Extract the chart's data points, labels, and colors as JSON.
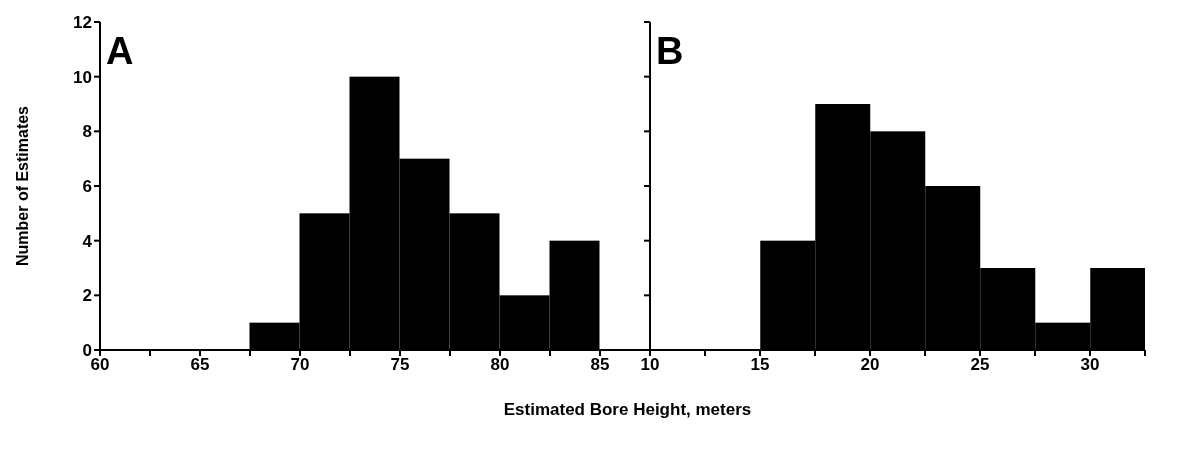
{
  "chart_data": [
    {
      "type": "histogram",
      "annotations": [
        "A"
      ],
      "xlabel": "Estimated Bore Height, meters",
      "ylabel": "Number of Estimates",
      "bins": [
        60,
        62.5,
        65,
        67.5,
        70,
        72.5,
        75,
        77.5,
        80,
        82.5,
        85
      ],
      "values": [
        0,
        0,
        0,
        1,
        5,
        10,
        7,
        5,
        2,
        4
      ],
      "color": "#000000",
      "xlim": [
        60,
        87.5
      ],
      "xticks": [
        60,
        {
          "value": 62.5,
          "label": null
        },
        65,
        {
          "value": 67.5,
          "label": null
        },
        70,
        {
          "value": 72.5,
          "label": null
        },
        75,
        {
          "value": 77.5,
          "label": null
        },
        80,
        {
          "value": 82.5,
          "label": null
        },
        85
      ],
      "ylim": [
        0,
        12
      ],
      "yticks": [
        0,
        2,
        4,
        6,
        8,
        10,
        12
      ],
      "grid": false,
      "legend": false
    },
    {
      "type": "histogram",
      "annotations": [
        "B"
      ],
      "bins": [
        10,
        12.5,
        15,
        17.5,
        20,
        22.5,
        25,
        27.5,
        30,
        32.5
      ],
      "values": [
        0,
        0,
        4,
        9,
        8,
        6,
        3,
        1,
        3
      ],
      "color": "#000000",
      "xlim": [
        10,
        32.5
      ],
      "xticks": [
        10,
        {
          "value": 12.5,
          "label": null
        },
        15,
        {
          "value": 17.5,
          "label": null
        },
        20,
        {
          "value": 22.5,
          "label": null
        },
        25,
        {
          "value": 27.5,
          "label": null
        },
        30,
        {
          "value": 32.5,
          "label": null
        }
      ],
      "ylim": [
        0,
        12
      ],
      "yticks": [
        0,
        2,
        4,
        6,
        8,
        10,
        12
      ],
      "tick_labels": "x",
      "grid": false,
      "legend": false
    }
  ]
}
